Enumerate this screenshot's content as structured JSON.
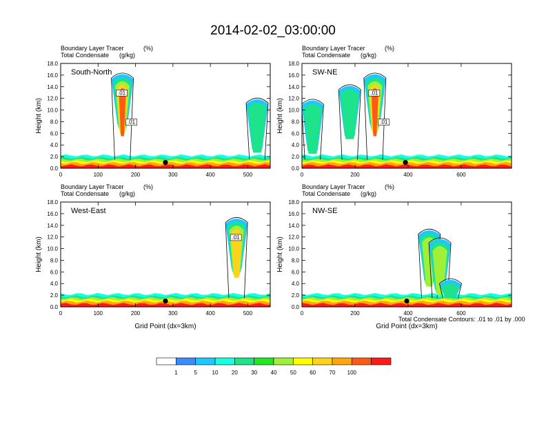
{
  "figure_title": "2014-02-02_03:00:00",
  "note": "Total Condensate Contours: .01 to .01 by .000",
  "colors": {
    "frame": "#000000",
    "levels": [
      "#ffffff",
      "#3a8cff",
      "#1ec8ff",
      "#17ffe0",
      "#1de38a",
      "#21e821",
      "#a0f03a",
      "#ffff00",
      "#ffd21b",
      "#ffa50a",
      "#ff5a14",
      "#ff1a1a"
    ]
  },
  "chart_data": [
    {
      "type": "heatmap",
      "panel_label": "South-North",
      "field1": "Boundary Layer Tracer",
      "unit1": "(%)",
      "field2": "Total Condensate",
      "unit2": "(g/kg)",
      "ylabel": "Height (km)",
      "xlabel": "",
      "xlim": [
        0,
        560
      ],
      "ylim": [
        0,
        18
      ],
      "x_ticks": [
        "0",
        "100",
        "200",
        "300",
        "400",
        "500"
      ],
      "y_ticks": [
        "0.0",
        "2.0",
        "4.0",
        "6.0",
        "8.0",
        "10.0",
        "12.0",
        "14.0",
        "16.0",
        "18.0"
      ],
      "contour_labels": [
        ".01",
        ".01"
      ],
      "marker_x": 280,
      "marker_y": 1.0,
      "plumes": [
        {
          "x": 165,
          "top": 16.5,
          "value": 80
        },
        {
          "x": 525,
          "top": 12.2,
          "value": 20
        }
      ]
    },
    {
      "type": "heatmap",
      "panel_label": "SW-NE",
      "field1": "Boundary Layer Tracer",
      "unit1": "(%)",
      "field2": "Total Condensate",
      "unit2": "(g/kg)",
      "ylabel": "Height (km)",
      "xlabel": "",
      "xlim": [
        0,
        790
      ],
      "ylim": [
        0,
        18
      ],
      "x_ticks": [
        "0",
        "200",
        "400",
        "600"
      ],
      "y_ticks": [
        "0.0",
        "2.0",
        "4.0",
        "6.0",
        "8.0",
        "10.0",
        "12.0",
        "14.0",
        "16.0",
        "18.0"
      ],
      "contour_labels": [
        ".01",
        ".01"
      ],
      "marker_x": 390,
      "marker_y": 1.0,
      "plumes": [
        {
          "x": 275,
          "top": 16.5,
          "value": 80
        },
        {
          "x": 40,
          "top": 12.0,
          "value": 30
        },
        {
          "x": 180,
          "top": 14.5,
          "value": 20
        }
      ]
    },
    {
      "type": "heatmap",
      "panel_label": "West-East",
      "field1": "Boundary Layer Tracer",
      "unit1": "(%)",
      "field2": "Total Condensate",
      "unit2": "(g/kg)",
      "ylabel": "Height (km)",
      "xlabel": "Grid Point (dx=3km)",
      "xlim": [
        0,
        560
      ],
      "ylim": [
        0,
        18
      ],
      "x_ticks": [
        "0",
        "100",
        "200",
        "300",
        "400",
        "500"
      ],
      "y_ticks": [
        "0.0",
        "2.0",
        "4.0",
        "6.0",
        "8.0",
        "10.0",
        "12.0",
        "14.0",
        "16.0",
        "18.0"
      ],
      "contour_labels": [
        ".01"
      ],
      "marker_x": 280,
      "marker_y": 1.0,
      "plumes": [
        {
          "x": 470,
          "top": 15.5,
          "value": 60
        }
      ]
    },
    {
      "type": "heatmap",
      "panel_label": "NW-SE",
      "field1": "Boundary Layer Tracer",
      "unit1": "(%)",
      "field2": "Total Condensate",
      "unit2": "(g/kg)",
      "ylabel": "Height (km)",
      "xlabel": "Grid Point (dx=3km)",
      "xlim": [
        0,
        790
      ],
      "ylim": [
        0,
        18
      ],
      "x_ticks": [
        "0",
        "200",
        "400",
        "600"
      ],
      "y_ticks": [
        "0.0",
        "2.0",
        "4.0",
        "6.0",
        "8.0",
        "10.0",
        "12.0",
        "14.0",
        "16.0",
        "18.0"
      ],
      "contour_labels": [],
      "marker_x": 395,
      "marker_y": 1.0,
      "plumes": [
        {
          "x": 480,
          "top": 13.5,
          "value": 40
        },
        {
          "x": 520,
          "top": 12.0,
          "value": 40
        },
        {
          "x": 560,
          "top": 5.0,
          "value": 30
        }
      ]
    }
  ],
  "colorbar": {
    "labels": [
      "1",
      "5",
      "10",
      "20",
      "30",
      "40",
      "50",
      "60",
      "70",
      "100"
    ]
  }
}
